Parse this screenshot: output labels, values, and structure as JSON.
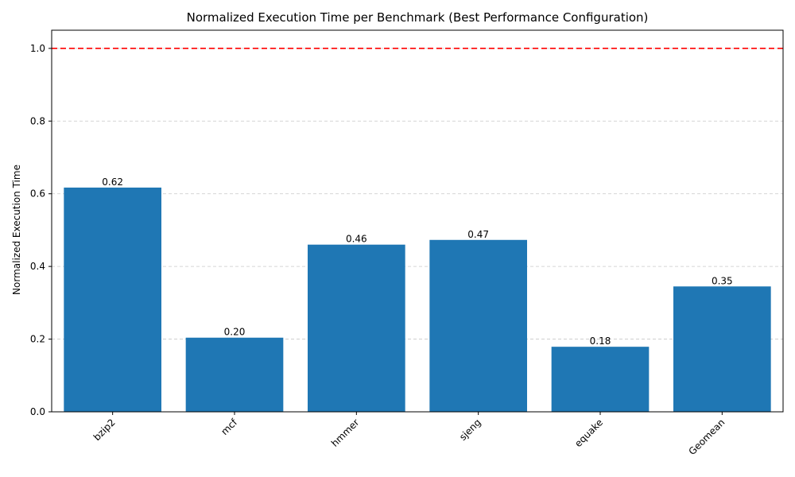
{
  "chart_data": {
    "type": "bar",
    "title": "Normalized Execution Time per Benchmark (Best Performance Configuration)",
    "xlabel": "",
    "ylabel": "Normalized Execution Time",
    "categories": [
      "bzip2",
      "mcf",
      "hmmer",
      "sjeng",
      "equake",
      "Geomean"
    ],
    "values": [
      0.617,
      0.204,
      0.46,
      0.473,
      0.179,
      0.345
    ],
    "value_labels": [
      "0.62",
      "0.20",
      "0.46",
      "0.47",
      "0.18",
      "0.35"
    ],
    "ylim": [
      0,
      1.05
    ],
    "yticks": [
      0.0,
      0.2,
      0.4,
      0.6,
      0.8,
      1.0
    ],
    "ytick_labels": [
      "0.0",
      "0.2",
      "0.4",
      "0.6",
      "0.8",
      "1.0"
    ],
    "grid": "y-axis dashed",
    "bar_color": "#1f77b4",
    "reference_line": {
      "value": 1.0,
      "color": "#ff0000",
      "style": "dashed"
    },
    "xtick_rotation_deg": 45
  }
}
